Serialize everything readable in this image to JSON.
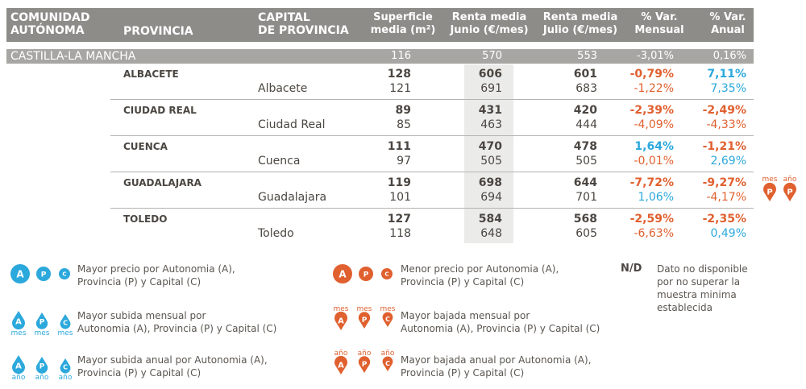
{
  "header": {
    "columns": [
      [
        "COMUNIDAD",
        "AUTÓNOMA"
      ],
      [
        "PROVINCIA"
      ],
      [
        "CAPITAL",
        "DE PROVINCIA"
      ],
      [
        "Superficie",
        "media (m²)"
      ],
      [
        "Renta media",
        "Junio (€/mes)"
      ],
      [
        "Renta media",
        "Julio (€/mes)"
      ],
      [
        "% Var.",
        "Mensual"
      ],
      [
        "% Var.",
        "Anual"
      ]
    ]
  },
  "colors": {
    "blue": "#2ba8dc",
    "orange": "#e0602f",
    "dark": "#4b4641",
    "header_bg": "#8e8c89",
    "region_bg": "#a8a6a3",
    "shade": "#ebebea"
  },
  "region": {
    "name": "CASTILLA-LA MANCHA",
    "values": [
      "116",
      "570",
      "553",
      "-3,01%",
      "0,16%"
    ]
  },
  "provinces": [
    {
      "name": "ALBACETE",
      "values": [
        "128",
        "606",
        "601",
        "-0,79%",
        "7,11%"
      ],
      "var_colors": [
        "orange",
        "blue"
      ],
      "capital": "Albacete",
      "capital_values": [
        "121",
        "691",
        "683",
        "-1,22%",
        "7,35%"
      ],
      "capital_var_colors": [
        "orange",
        "blue"
      ]
    },
    {
      "name": "CIUDAD REAL",
      "values": [
        "89",
        "431",
        "420",
        "-2,39%",
        "-2,49%"
      ],
      "var_colors": [
        "orange",
        "orange"
      ],
      "capital": "Ciudad Real",
      "capital_values": [
        "85",
        "463",
        "444",
        "-4,09%",
        "-4,33%"
      ],
      "capital_var_colors": [
        "orange",
        "orange"
      ]
    },
    {
      "name": "CUENCA",
      "values": [
        "111",
        "470",
        "478",
        "1,64%",
        "-1,21%"
      ],
      "var_colors": [
        "blue",
        "orange"
      ],
      "capital": "Cuenca",
      "capital_values": [
        "97",
        "505",
        "505",
        "-0,01%",
        "2,69%"
      ],
      "capital_var_colors": [
        "orange",
        "blue"
      ]
    },
    {
      "name": "GUADALAJARA",
      "values": [
        "119",
        "698",
        "644",
        "-7,72%",
        "-9,27%"
      ],
      "var_colors": [
        "orange",
        "orange"
      ],
      "capital": "Guadalajara",
      "capital_values": [
        "101",
        "694",
        "701",
        "1,06%",
        "-4,17%"
      ],
      "capital_var_colors": [
        "blue",
        "orange"
      ],
      "badges": [
        {
          "top": "mes",
          "letter": "P"
        },
        {
          "top": "año",
          "letter": "P"
        }
      ]
    },
    {
      "name": "TOLEDO",
      "values": [
        "127",
        "584",
        "568",
        "-2,59%",
        "-2,35%"
      ],
      "var_colors": [
        "orange",
        "orange"
      ],
      "capital": "Toledo",
      "capital_values": [
        "118",
        "648",
        "605",
        "-6,63%",
        "0,49%"
      ],
      "capital_var_colors": [
        "orange",
        "blue"
      ]
    }
  ],
  "legend": [
    {
      "kind": "circle",
      "color": "blue",
      "letters": [
        "A",
        "P",
        "C"
      ],
      "text": [
        "Mayor precio por Autonomia (A),",
        "Provincia (P) y Capital (C)"
      ]
    },
    {
      "kind": "circle",
      "color": "orange",
      "letters": [
        "A",
        "P",
        "C"
      ],
      "text": [
        "Menor precio por Autonomia (A),",
        "Provincia (P) y Capital (C)"
      ]
    },
    {
      "kind": "up",
      "color": "blue",
      "letters": [
        "A",
        "P",
        "C"
      ],
      "sub": "mes",
      "text": [
        "Mayor subida mensual por",
        "Autonomia (A), Provincia (P) y Capital (C)"
      ]
    },
    {
      "kind": "down",
      "color": "orange",
      "letters": [
        "A",
        "P",
        "C"
      ],
      "sub": "mes",
      "text": [
        "Mayor bajada mensual por",
        "Autonomia (A), Provincia (P) y Capital (C)"
      ]
    },
    {
      "kind": "up",
      "color": "blue",
      "letters": [
        "A",
        "P",
        "C"
      ],
      "sub": "año",
      "text": [
        "Mayor subida anual por Autonomia (A),",
        "Provincia (P) y Capital (C)"
      ]
    },
    {
      "kind": "down",
      "color": "orange",
      "letters": [
        "A",
        "P",
        "C"
      ],
      "sub": "año",
      "text": [
        "Mayor bajada anual por Autonomia (A),",
        "Provincia (P) y Capital (C)"
      ]
    }
  ],
  "nd": {
    "label": "N/D",
    "text": [
      "Dato no disponible",
      "por no superar la",
      "muestra minima",
      "establecida"
    ]
  }
}
